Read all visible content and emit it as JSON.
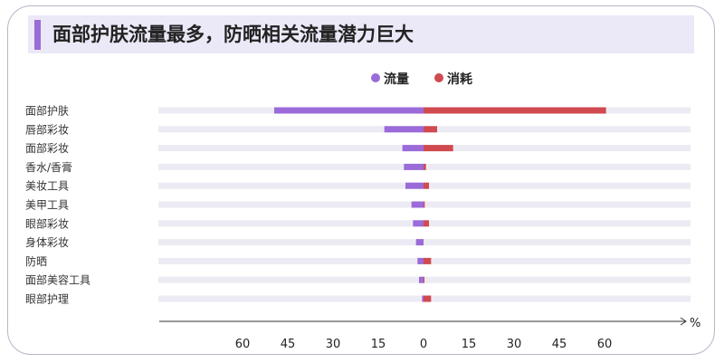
{
  "title": "面部护肤流量最多，防晒相关流量潜力巨大",
  "colors": {
    "flow": "#9b6bd9",
    "consume": "#d04a4f",
    "track": "#ecebf3",
    "title_bar": "#9b6bd9",
    "title_band": "#ebe8f7"
  },
  "chart_data": {
    "type": "bar",
    "orientation": "horizontal-diverging",
    "categories": [
      "面部护肤",
      "唇部彩妆",
      "面部彩妆",
      "香水/香膏",
      "美妆工具",
      "美甲工具",
      "眼部彩妆",
      "身体彩妆",
      "防晒",
      "面部美容工具",
      "眼部护理"
    ],
    "series": [
      {
        "name": "流量",
        "side": "left",
        "values": [
          49.5,
          13,
          7,
          6.5,
          6,
          4,
          3.5,
          2.5,
          2,
          1.5,
          0.5
        ]
      },
      {
        "name": "消耗",
        "side": "right",
        "values": [
          60.5,
          4.5,
          9.8,
          0.8,
          1.8,
          0.4,
          1.8,
          0,
          2.5,
          0.3,
          2.5
        ]
      }
    ],
    "x_ticks_left": [
      "60",
      "45",
      "30",
      "15"
    ],
    "x_ticks_right": [
      "0",
      "15",
      "30",
      "45",
      "60"
    ],
    "xlim": [
      -60,
      60
    ],
    "x_unit": "%",
    "legend_position": "top-center",
    "grid": false
  }
}
